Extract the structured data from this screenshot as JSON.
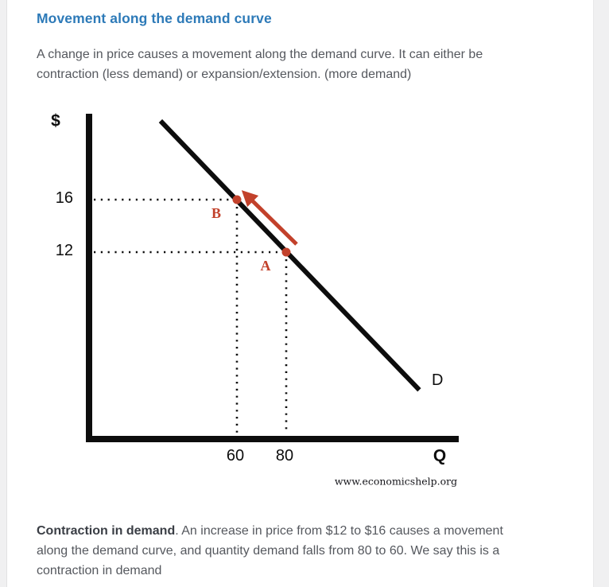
{
  "page": {
    "heading": "Movement along the demand curve",
    "intro": "A change in price causes a movement along the demand curve. It can either be contraction (less demand) or expansion/extension. (more demand)",
    "caption_bold": "Contraction in demand",
    "caption_rest": ". An increase in price from $12 to $16 causes a movement along the demand curve, and quantity demand falls from 80 to 60. We say this is a contraction in demand"
  },
  "colors": {
    "heading_blue": "#2d7ab8",
    "body_text": "#55585e",
    "chart_black": "#0d0d0d",
    "accent_red": "#c2412b",
    "gutter_gray": "#f0f0f1"
  },
  "chart_data": {
    "type": "line",
    "xlabel": "Q",
    "ylabel": "$",
    "watermark": "www.economicshelp.org",
    "axes": {
      "x_ticks": [
        60,
        80
      ],
      "y_ticks": [
        16,
        12
      ],
      "grid": false,
      "x_range": [
        0,
        150
      ],
      "y_range": [
        0,
        24
      ]
    },
    "series": [
      {
        "name": "Demand curve",
        "label": "D",
        "color": "#0d0d0d",
        "points": [
          {
            "x": 29,
            "y": 22
          },
          {
            "x": 134,
            "y": 1.5
          }
        ]
      }
    ],
    "marked_points": [
      {
        "label": "B",
        "x": 60,
        "y": 16
      },
      {
        "label": "A",
        "x": 80,
        "y": 12
      }
    ],
    "movement_arrow": {
      "from_label": "A",
      "to_label": "B",
      "from": {
        "x": 80,
        "y": 12
      },
      "to": {
        "x": 60,
        "y": 16
      },
      "color": "#c2412b",
      "meaning": "contraction in demand: price rises $12 to $16, quantity falls 80 to 60"
    }
  }
}
